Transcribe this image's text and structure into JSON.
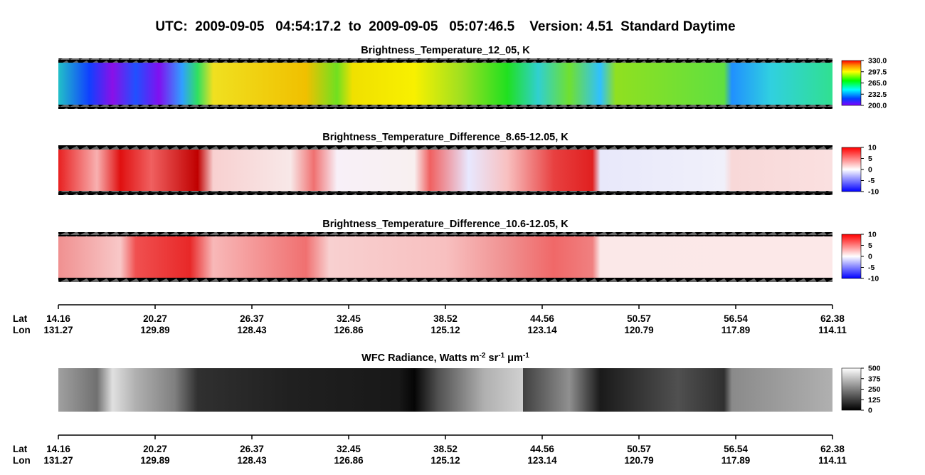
{
  "title": "UTC:  2009-09-05   04:54:17.2  to  2009-09-05   05:07:46.5    Version: 4.51  Standard Daytime",
  "panels": [
    {
      "title": "Brightness_Temperature_12_05, K",
      "colorbar_ticks": [
        {
          "value": 330,
          "label": "330.0"
        },
        297.5,
        {
          "value": 265,
          "label": "265.0"
        },
        232.5,
        {
          "value": 200,
          "label": "200.0"
        }
      ]
    },
    {
      "title": "Brightness_Temperature_Difference_8.65-12.05, K",
      "colorbar_ticks": [
        10,
        5,
        0,
        -5,
        -10
      ]
    },
    {
      "title": "Brightness_Temperature_Difference_10.6-12.05, K",
      "colorbar_ticks": [
        10,
        5,
        0,
        -5,
        -10
      ]
    }
  ],
  "wfc": {
    "title_parts": [
      "WFC Radiance, Watts m",
      "-2",
      " sr",
      "-1",
      " μm",
      "-1"
    ],
    "colorbar_ticks": [
      500,
      375,
      250,
      125,
      0
    ]
  },
  "axes": [
    {
      "lat_label": "Lat",
      "lon_label": "Lon",
      "lat": [
        14.16,
        20.27,
        26.37,
        32.45,
        38.52,
        44.56,
        50.57,
        56.54,
        62.38
      ],
      "lon": [
        131.27,
        129.89,
        128.43,
        126.86,
        125.12,
        123.14,
        120.79,
        117.89,
        114.11
      ]
    },
    {
      "lat_label": "Lat",
      "lon_label": "Lon",
      "lat": [
        14.16,
        20.27,
        26.37,
        32.45,
        38.52,
        44.56,
        50.57,
        56.54,
        62.38
      ],
      "lon": [
        131.27,
        129.89,
        128.43,
        126.86,
        125.12,
        123.14,
        120.79,
        117.89,
        114.11
      ]
    }
  ]
}
